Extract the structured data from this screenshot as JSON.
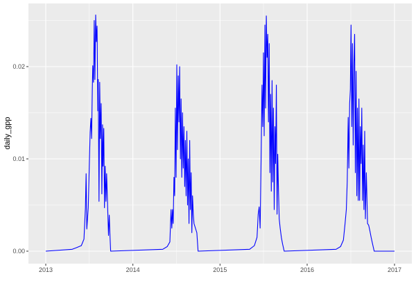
{
  "chart_data": {
    "type": "line",
    "title": "",
    "xlabel": "",
    "ylabel": "daily_gpp",
    "x_tick_labels": [
      "2013",
      "2014",
      "2015",
      "2016",
      "2017"
    ],
    "y_tick_labels": [
      "0.00",
      "0.01",
      "0.02"
    ],
    "y_ticks": [
      0,
      0.01,
      0.02
    ],
    "xlim": [
      "2012-10-20",
      "2017-03-15"
    ],
    "ylim": [
      -0.0014,
      0.0268
    ],
    "grid": true,
    "line_color": "#0000FF",
    "panel_background": "#EBEBEB",
    "series": [
      {
        "x": [
          "2013-01-01",
          "2013-04-22",
          "2013-05-11",
          "2013-05-30",
          "2013-06-10",
          "2013-06-16",
          "2013-06-19",
          "2013-06-22",
          "2013-06-28",
          "2013-07-03",
          "2013-07-06",
          "2013-07-09",
          "2013-07-12",
          "2013-07-15",
          "2013-07-17",
          "2013-07-20",
          "2013-07-23",
          "2013-07-26",
          "2013-07-29",
          "2013-08-01",
          "2013-08-04",
          "2013-08-07",
          "2013-08-09",
          "2013-08-12",
          "2013-08-15",
          "2013-08-18",
          "2013-08-21",
          "2013-08-24",
          "2013-08-27",
          "2013-08-29",
          "2013-09-01",
          "2013-09-04",
          "2013-09-07",
          "2013-09-10",
          "2013-09-13",
          "2013-09-19",
          "2013-09-21",
          "2013-09-24",
          "2013-09-27",
          "2013-09-30",
          "2014-05-06",
          "2014-05-25",
          "2014-06-05",
          "2014-06-10",
          "2014-06-13",
          "2014-06-16",
          "2014-06-19",
          "2014-06-22",
          "2014-06-25",
          "2014-06-28",
          "2014-07-01",
          "2014-07-04",
          "2014-07-07",
          "2014-07-10",
          "2014-07-13",
          "2014-07-16",
          "2014-07-19",
          "2014-07-22",
          "2014-07-25",
          "2014-07-28",
          "2014-07-31",
          "2014-08-03",
          "2014-08-06",
          "2014-08-09",
          "2014-08-12",
          "2014-08-15",
          "2014-08-18",
          "2014-08-21",
          "2014-08-24",
          "2014-08-27",
          "2014-08-30",
          "2014-09-02",
          "2014-09-05",
          "2014-09-08",
          "2014-09-11",
          "2014-09-14",
          "2014-09-26",
          "2014-10-01",
          "2015-05-05",
          "2015-05-25",
          "2015-06-05",
          "2015-06-10",
          "2015-06-14",
          "2015-06-18",
          "2015-06-22",
          "2015-06-26",
          "2015-06-29",
          "2015-07-02",
          "2015-07-05",
          "2015-07-08",
          "2015-07-11",
          "2015-07-14",
          "2015-07-17",
          "2015-07-20",
          "2015-07-23",
          "2015-07-26",
          "2015-07-29",
          "2015-08-01",
          "2015-08-04",
          "2015-08-07",
          "2015-08-10",
          "2015-08-13",
          "2015-08-16",
          "2015-08-19",
          "2015-08-22",
          "2015-08-25",
          "2015-08-28",
          "2015-08-31",
          "2015-09-03",
          "2015-09-06",
          "2015-09-10",
          "2015-09-15",
          "2015-09-20",
          "2015-09-27",
          "2016-05-01",
          "2016-05-20",
          "2016-06-01",
          "2016-06-08",
          "2016-06-13",
          "2016-06-17",
          "2016-06-21",
          "2016-06-24",
          "2016-06-27",
          "2016-06-30",
          "2016-07-03",
          "2016-07-06",
          "2016-07-09",
          "2016-07-12",
          "2016-07-15",
          "2016-07-18",
          "2016-07-21",
          "2016-07-24",
          "2016-07-27",
          "2016-07-30",
          "2016-08-02",
          "2016-08-05",
          "2016-08-08",
          "2016-08-11",
          "2016-08-14",
          "2016-08-17",
          "2016-08-20",
          "2016-08-23",
          "2016-08-26",
          "2016-08-29",
          "2016-09-01",
          "2016-09-05",
          "2016-09-10",
          "2016-09-15",
          "2016-09-20",
          "2016-09-25",
          "2016-10-01",
          "2016-10-08",
          "2017-01-01"
        ],
        "y": [
          0,
          0.0002,
          0.0004,
          0.0006,
          0.0013,
          0.0047,
          0.0084,
          0.0024,
          0.0047,
          0.0099,
          0.0129,
          0.0144,
          0.0122,
          0.0174,
          0.0201,
          0.0183,
          0.025,
          0.0186,
          0.0256,
          0.0227,
          0.0244,
          0.0152,
          0.0186,
          0.0054,
          0.0183,
          0.0122,
          0.016,
          0.0062,
          0.0137,
          0.0092,
          0.0133,
          0.0047,
          0.0092,
          0.0054,
          0.0084,
          0.0032,
          0.0017,
          0.0039,
          0.0017,
          0,
          0.0002,
          0.0005,
          0.001,
          0.0045,
          0.0025,
          0.0045,
          0.003,
          0.008,
          0.006,
          0.0155,
          0.008,
          0.0202,
          0.011,
          0.019,
          0.014,
          0.02,
          0.01,
          0.0165,
          0.008,
          0.015,
          0.009,
          0.0135,
          0.007,
          0.012,
          0.006,
          0.013,
          0.005,
          0.01,
          0.003,
          0.012,
          0.0045,
          0.0085,
          0.002,
          0.006,
          0.004,
          0.003,
          0.002,
          0,
          0.0002,
          0.0006,
          0.0015,
          0.004,
          0.0048,
          0.0025,
          0.0095,
          0.018,
          0.0135,
          0.0215,
          0.0125,
          0.0245,
          0.0155,
          0.0255,
          0.021,
          0.0235,
          0.014,
          0.0225,
          0.0085,
          0.017,
          0.0065,
          0.0185,
          0.0075,
          0.0155,
          0.0045,
          0.0135,
          0.0095,
          0.018,
          0.004,
          0.0105,
          0.0065,
          0.0035,
          0.0025,
          0.0015,
          0.0008,
          0,
          0.0002,
          0.0005,
          0.0012,
          0.003,
          0.0045,
          0.0075,
          0.0145,
          0.009,
          0.016,
          0.0175,
          0.0245,
          0.0135,
          0.0225,
          0.0115,
          0.0205,
          0.0235,
          0.0085,
          0.0195,
          0.006,
          0.0155,
          0.0055,
          0.0165,
          0.0055,
          0.0135,
          0.0095,
          0.0155,
          0.0055,
          0.0115,
          0.0045,
          0.013,
          0.0035,
          0.0085,
          0.003,
          0.0028,
          0.0022,
          0.0015,
          0.0008,
          0,
          0
        ]
      }
    ]
  }
}
